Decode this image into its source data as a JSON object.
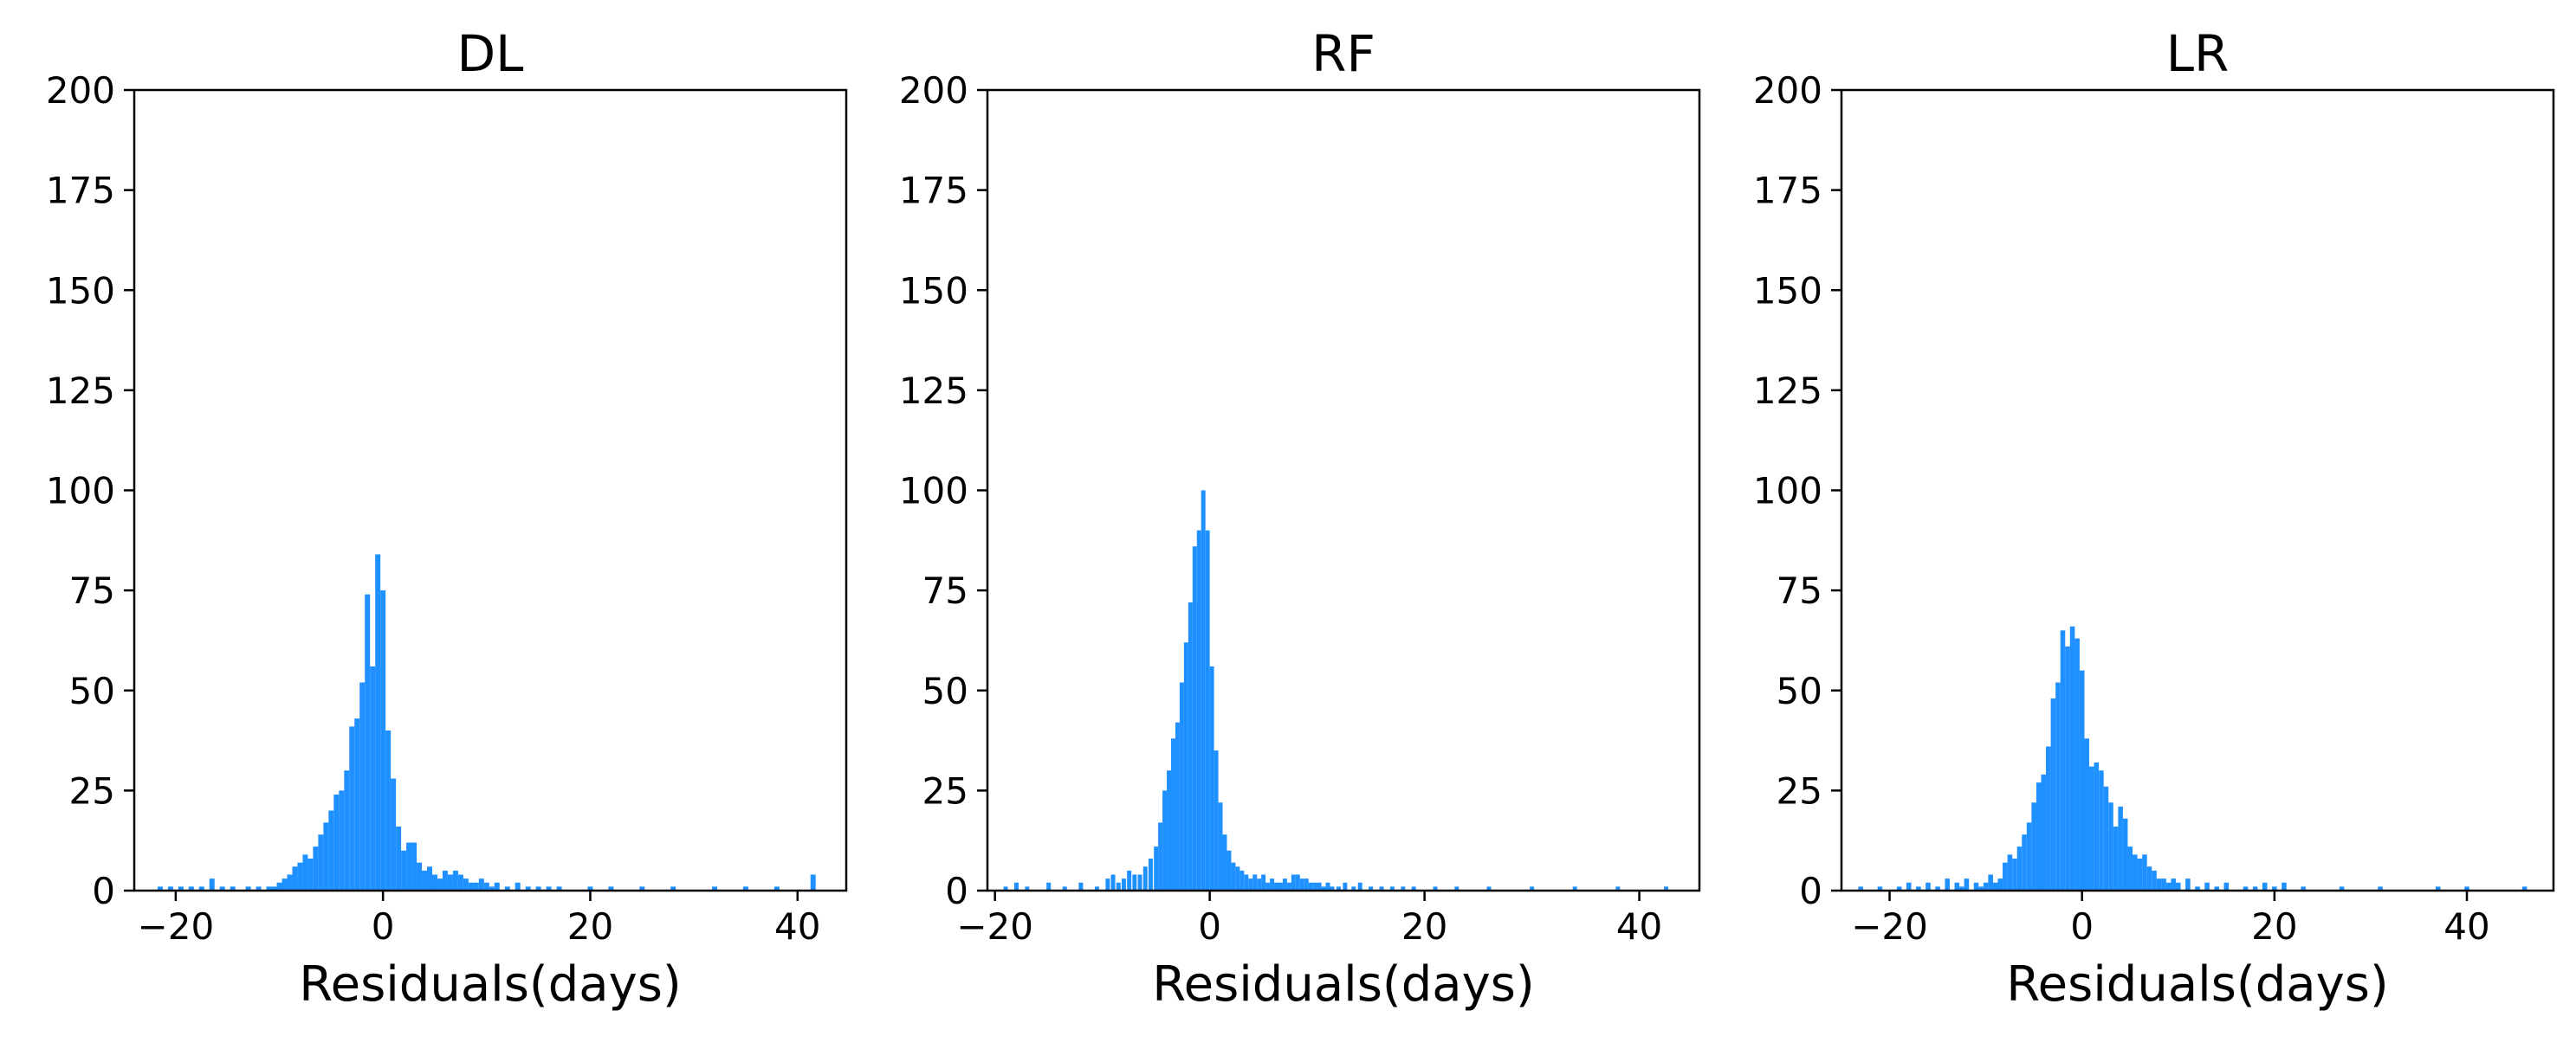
{
  "chart_data": [
    {
      "type": "bar",
      "title": "DL",
      "xlabel": "Residuals(days)",
      "ylabel": "",
      "xlim": [
        -24,
        44.7
      ],
      "ylim": [
        0,
        200
      ],
      "xticks": [
        -20,
        0,
        20,
        40
      ],
      "xtick_labels": [
        "−20",
        "0",
        "20",
        "40"
      ],
      "yticks": [
        0,
        25,
        50,
        75,
        100,
        125,
        150,
        175,
        200
      ],
      "ytick_labels": [
        "0",
        "25",
        "50",
        "75",
        "100",
        "125",
        "150",
        "175",
        "200"
      ],
      "bin_width": 0.5,
      "color": "#1e90ff",
      "bins": [
        [
          -21.5,
          1
        ],
        [
          -20.5,
          1
        ],
        [
          -19.5,
          1
        ],
        [
          -18.5,
          1
        ],
        [
          -17.5,
          1
        ],
        [
          -16.5,
          3
        ],
        [
          -15.5,
          1
        ],
        [
          -14.5,
          1
        ],
        [
          -13,
          1
        ],
        [
          -12,
          1
        ],
        [
          -11,
          1
        ],
        [
          -10.5,
          1
        ],
        [
          -10,
          2
        ],
        [
          -9.5,
          3
        ],
        [
          -9,
          4
        ],
        [
          -8.5,
          6
        ],
        [
          -8,
          7
        ],
        [
          -7.5,
          9
        ],
        [
          -7,
          8
        ],
        [
          -6.5,
          11
        ],
        [
          -6,
          14
        ],
        [
          -5.5,
          17
        ],
        [
          -5,
          20
        ],
        [
          -4.5,
          24
        ],
        [
          -4,
          25
        ],
        [
          -3.5,
          30
        ],
        [
          -3,
          41
        ],
        [
          -2.5,
          43
        ],
        [
          -2,
          52
        ],
        [
          -1.5,
          74
        ],
        [
          -1,
          56
        ],
        [
          -0.5,
          84
        ],
        [
          0,
          75
        ],
        [
          0.5,
          40
        ],
        [
          1,
          28
        ],
        [
          1.5,
          16
        ],
        [
          2,
          10
        ],
        [
          2.5,
          12
        ],
        [
          3,
          12
        ],
        [
          3.5,
          7
        ],
        [
          4,
          5
        ],
        [
          4.5,
          6
        ],
        [
          5,
          4
        ],
        [
          5.5,
          3
        ],
        [
          6,
          5
        ],
        [
          6.5,
          4
        ],
        [
          7,
          5
        ],
        [
          7.5,
          4
        ],
        [
          8,
          3
        ],
        [
          8.5,
          2
        ],
        [
          9,
          2
        ],
        [
          9.5,
          3
        ],
        [
          10,
          2
        ],
        [
          10.5,
          1
        ],
        [
          11,
          2
        ],
        [
          12,
          1
        ],
        [
          13,
          2
        ],
        [
          14,
          1
        ],
        [
          15,
          1
        ],
        [
          16,
          1
        ],
        [
          17,
          1
        ],
        [
          20,
          1
        ],
        [
          22,
          1
        ],
        [
          25,
          1
        ],
        [
          28,
          1
        ],
        [
          32,
          1
        ],
        [
          35,
          1
        ],
        [
          38,
          1
        ],
        [
          41.5,
          4
        ]
      ]
    },
    {
      "type": "bar",
      "title": "RF",
      "xlabel": "Residuals(days)",
      "ylabel": "",
      "xlim": [
        -20.7,
        45.6
      ],
      "ylim": [
        0,
        200
      ],
      "xticks": [
        -20,
        0,
        20,
        40
      ],
      "xtick_labels": [
        "−20",
        "0",
        "20",
        "40"
      ],
      "yticks": [
        0,
        25,
        50,
        75,
        100,
        125,
        150,
        175,
        200
      ],
      "ytick_labels": [
        "0",
        "25",
        "50",
        "75",
        "100",
        "125",
        "150",
        "175",
        "200"
      ],
      "bin_width": 0.4,
      "color": "#1e90ff",
      "bins": [
        [
          -19,
          1
        ],
        [
          -18,
          2
        ],
        [
          -17,
          1
        ],
        [
          -15,
          2
        ],
        [
          -13.5,
          1
        ],
        [
          -12,
          2
        ],
        [
          -10.5,
          1
        ],
        [
          -9.5,
          3
        ],
        [
          -9,
          4
        ],
        [
          -8.5,
          2
        ],
        [
          -8,
          3
        ],
        [
          -7.5,
          5
        ],
        [
          -7,
          4
        ],
        [
          -6.5,
          4
        ],
        [
          -6,
          6
        ],
        [
          -5.5,
          8
        ],
        [
          -5,
          11
        ],
        [
          -4.6,
          17
        ],
        [
          -4.2,
          25
        ],
        [
          -3.8,
          30
        ],
        [
          -3.4,
          38
        ],
        [
          -3,
          42
        ],
        [
          -2.6,
          52
        ],
        [
          -2.2,
          62
        ],
        [
          -1.8,
          72
        ],
        [
          -1.4,
          86
        ],
        [
          -1,
          90
        ],
        [
          -0.6,
          100
        ],
        [
          -0.2,
          90
        ],
        [
          0.2,
          56
        ],
        [
          0.6,
          35
        ],
        [
          1,
          22
        ],
        [
          1.4,
          14
        ],
        [
          1.8,
          10
        ],
        [
          2.2,
          7
        ],
        [
          2.6,
          6
        ],
        [
          3,
          5
        ],
        [
          3.4,
          4
        ],
        [
          3.8,
          3
        ],
        [
          4.2,
          4
        ],
        [
          4.6,
          3
        ],
        [
          5,
          4
        ],
        [
          5.4,
          2
        ],
        [
          5.8,
          3
        ],
        [
          6.2,
          2
        ],
        [
          6.6,
          2
        ],
        [
          7,
          3
        ],
        [
          7.4,
          2
        ],
        [
          7.8,
          4
        ],
        [
          8.2,
          4
        ],
        [
          8.6,
          3
        ],
        [
          9,
          3
        ],
        [
          9.4,
          2
        ],
        [
          9.8,
          2
        ],
        [
          10.2,
          2
        ],
        [
          10.6,
          1
        ],
        [
          11,
          2
        ],
        [
          11.4,
          1
        ],
        [
          12,
          1
        ],
        [
          12.6,
          2
        ],
        [
          13.4,
          1
        ],
        [
          14,
          2
        ],
        [
          15,
          1
        ],
        [
          16,
          1
        ],
        [
          17,
          1
        ],
        [
          18,
          1
        ],
        [
          19,
          1
        ],
        [
          21,
          1
        ],
        [
          23,
          1
        ],
        [
          26,
          1
        ],
        [
          30,
          1
        ],
        [
          34,
          1
        ],
        [
          38,
          1
        ],
        [
          42.5,
          1
        ]
      ]
    },
    {
      "type": "bar",
      "title": "LR",
      "xlabel": "Residuals(days)",
      "ylabel": "",
      "xlim": [
        -25,
        49
      ],
      "ylim": [
        0,
        200
      ],
      "xticks": [
        -20,
        0,
        20,
        40
      ],
      "xtick_labels": [
        "−20",
        "0",
        "20",
        "40"
      ],
      "yticks": [
        0,
        25,
        50,
        75,
        100,
        125,
        150,
        175,
        200
      ],
      "ytick_labels": [
        "0",
        "25",
        "50",
        "75",
        "100",
        "125",
        "150",
        "175",
        "200"
      ],
      "bin_width": 0.5,
      "color": "#1e90ff",
      "bins": [
        [
          -23,
          1
        ],
        [
          -21,
          1
        ],
        [
          -19,
          1
        ],
        [
          -18,
          2
        ],
        [
          -17,
          1
        ],
        [
          -16,
          2
        ],
        [
          -15,
          1
        ],
        [
          -14,
          3
        ],
        [
          -13,
          2
        ],
        [
          -12.5,
          1
        ],
        [
          -12,
          3
        ],
        [
          -11,
          2
        ],
        [
          -10.5,
          1
        ],
        [
          -10,
          2
        ],
        [
          -9.5,
          4
        ],
        [
          -9,
          2
        ],
        [
          -8.5,
          3
        ],
        [
          -8,
          7
        ],
        [
          -7.5,
          9
        ],
        [
          -7,
          8
        ],
        [
          -6.5,
          11
        ],
        [
          -6,
          14
        ],
        [
          -5.5,
          17
        ],
        [
          -5,
          22
        ],
        [
          -4.5,
          27
        ],
        [
          -4,
          29
        ],
        [
          -3.5,
          36
        ],
        [
          -3,
          48
        ],
        [
          -2.5,
          52
        ],
        [
          -2,
          65
        ],
        [
          -1.5,
          61
        ],
        [
          -1,
          66
        ],
        [
          -0.5,
          63
        ],
        [
          0,
          55
        ],
        [
          0.5,
          38
        ],
        [
          1,
          31
        ],
        [
          1.5,
          32
        ],
        [
          2,
          30
        ],
        [
          2.5,
          26
        ],
        [
          3,
          22
        ],
        [
          3.5,
          16
        ],
        [
          4,
          21
        ],
        [
          4.5,
          18
        ],
        [
          5,
          11
        ],
        [
          5.5,
          9
        ],
        [
          6,
          8
        ],
        [
          6.5,
          9
        ],
        [
          7,
          6
        ],
        [
          7.5,
          5
        ],
        [
          8,
          3
        ],
        [
          8.5,
          3
        ],
        [
          9,
          2
        ],
        [
          9.5,
          3
        ],
        [
          10,
          2
        ],
        [
          11,
          3
        ],
        [
          12,
          1
        ],
        [
          13,
          2
        ],
        [
          14,
          1
        ],
        [
          15,
          2
        ],
        [
          17,
          1
        ],
        [
          18,
          1
        ],
        [
          19,
          2
        ],
        [
          20,
          1
        ],
        [
          21,
          2
        ],
        [
          23,
          1
        ],
        [
          27,
          1
        ],
        [
          31,
          1
        ],
        [
          37,
          1
        ],
        [
          40,
          1
        ],
        [
          46,
          1
        ]
      ]
    }
  ]
}
